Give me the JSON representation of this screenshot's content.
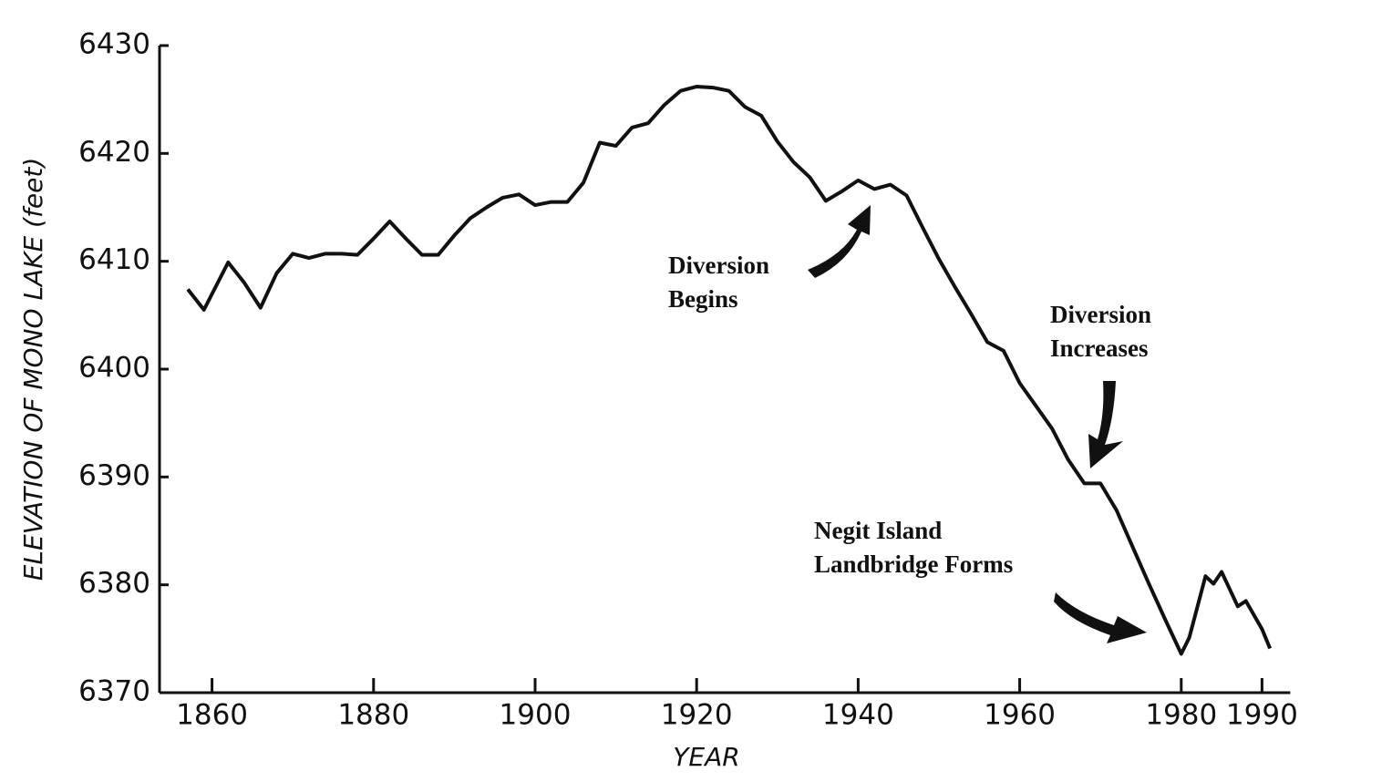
{
  "chart_data": {
    "type": "line",
    "x_label": "YEAR",
    "y_label": "ELEVATION OF MONO LAKE (feet)",
    "x": [
      1857,
      1859,
      1862,
      1864,
      1866,
      1868,
      1870,
      1872,
      1874,
      1876,
      1878,
      1880,
      1882,
      1884,
      1886,
      1888,
      1890,
      1892,
      1894,
      1896,
      1898,
      1900,
      1902,
      1904,
      1906,
      1908,
      1910,
      1912,
      1914,
      1916,
      1918,
      1920,
      1922,
      1924,
      1926,
      1928,
      1930,
      1932,
      1934,
      1936,
      1938,
      1940,
      1942,
      1944,
      1946,
      1948,
      1950,
      1952,
      1954,
      1956,
      1958,
      1960,
      1962,
      1964,
      1966,
      1968,
      1970,
      1972,
      1974,
      1976,
      1978,
      1980,
      1981,
      1983,
      1984,
      1985,
      1987,
      1988,
      1990,
      1991
    ],
    "series": [
      {
        "name": "Elevation",
        "color": "#111111",
        "values": [
          6407.4,
          6405.5,
          6409.9,
          6408.0,
          6405.7,
          6408.9,
          6410.7,
          6410.3,
          6410.7,
          6410.7,
          6410.6,
          6412.1,
          6413.7,
          6412.1,
          6410.6,
          6410.6,
          6412.4,
          6414.0,
          6415.0,
          6415.9,
          6416.2,
          6415.2,
          6415.5,
          6415.5,
          6417.3,
          6421.0,
          6420.7,
          6422.4,
          6422.8,
          6424.5,
          6425.8,
          6426.2,
          6426.1,
          6425.8,
          6424.3,
          6423.5,
          6421.1,
          6419.2,
          6417.8,
          6415.6,
          6416.5,
          6417.5,
          6416.7,
          6417.1,
          6416.1,
          6413.1,
          6410.2,
          6407.6,
          6405.1,
          6402.5,
          6401.7,
          6398.7,
          6396.6,
          6394.5,
          6391.6,
          6389.4,
          6389.4,
          6386.9,
          6383.5,
          6380.1,
          6376.8,
          6373.6,
          6375.1,
          6380.8,
          6380.1,
          6381.2,
          6378.0,
          6378.5,
          6375.9,
          6374.1
        ]
      }
    ],
    "xlim": [
      1853.5,
      1993.5
    ],
    "xticks": [
      1860,
      1880,
      1900,
      1920,
      1940,
      1960,
      1980,
      1990
    ],
    "ylim": [
      6370,
      6430
    ],
    "yticks": [
      6370,
      6380,
      6390,
      6400,
      6410,
      6420,
      6430
    ],
    "annotations": [
      {
        "lines": [
          "Diversion",
          "Begins"
        ]
      },
      {
        "lines": [
          "Diversion",
          "Increases"
        ]
      },
      {
        "lines": [
          "Negit Island",
          "Landbridge Forms"
        ]
      }
    ]
  }
}
